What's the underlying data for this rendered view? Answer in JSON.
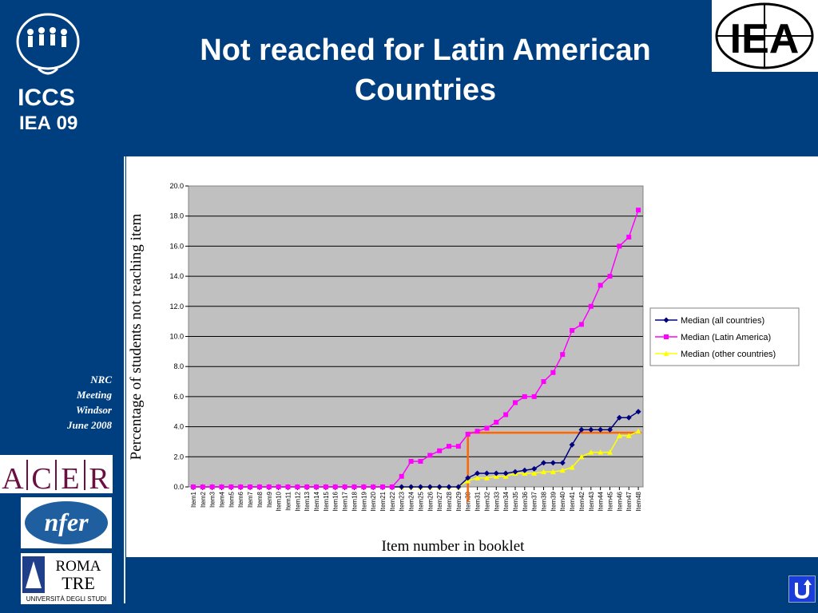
{
  "slide": {
    "title_line1": "Not reached for Latin American",
    "title_line2": "Countries",
    "side_note": [
      "NRC",
      "Meeting",
      "Windsor",
      "June 2008"
    ],
    "logos": {
      "iccs_text": "ICCS",
      "iccs_iea": "IEA",
      "iccs_year": "09",
      "iea_text": "IEA",
      "acer_letters": [
        "A",
        "C",
        "E",
        "R"
      ],
      "nfer_text": "nfer",
      "roma_line1": "ROMA",
      "roma_line2": "TRE",
      "roma_line3": "UNIVERSITÀ DEGLI STUDI"
    },
    "colors": {
      "background": "#003f7f",
      "plot_area": "#c0c0c0"
    }
  },
  "chart_data": {
    "type": "line",
    "title": "",
    "xlabel": "Item number in booklet",
    "ylabel": "Percentage of students not reaching item",
    "ylim": [
      0,
      20
    ],
    "yticks": [
      "0.0",
      "2.0",
      "4.0",
      "6.0",
      "8.0",
      "10.0",
      "12.0",
      "14.0",
      "16.0",
      "18.0",
      "20.0"
    ],
    "grid": true,
    "legend_position": "right",
    "categories": [
      "Item1",
      "Item2",
      "Item3",
      "Item4",
      "Item5",
      "Item6",
      "Item7",
      "Item8",
      "Item9",
      "Item10",
      "Item11",
      "Item12",
      "Item13",
      "Item14",
      "Item15",
      "Item16",
      "Item17",
      "Item18",
      "Item19",
      "Item20",
      "Item21",
      "Item22",
      "Item23",
      "Item24",
      "Item25",
      "Item26",
      "Item27",
      "Item28",
      "Item29",
      "Item30",
      "Item31",
      "Item32",
      "Item33",
      "Item34",
      "Item35",
      "Item36",
      "Item37",
      "Item38",
      "Item39",
      "Item40",
      "Item41",
      "Item42",
      "Item43",
      "Item44",
      "Item45",
      "Item46",
      "Item47",
      "Item48"
    ],
    "series": [
      {
        "name": "Median (all countries)",
        "color": "#000080",
        "marker": "diamond",
        "values": [
          0,
          0,
          0,
          0,
          0,
          0,
          0,
          0,
          0,
          0,
          0,
          0,
          0,
          0,
          0,
          0,
          0,
          0,
          0,
          0,
          0,
          0,
          0,
          0,
          0,
          0,
          0,
          0,
          0,
          0.6,
          0.9,
          0.9,
          0.9,
          0.9,
          1.0,
          1.1,
          1.2,
          1.6,
          1.6,
          1.6,
          2.8,
          3.8,
          3.8,
          3.8,
          3.8,
          4.6,
          4.6,
          5.0
        ]
      },
      {
        "name": "Median (Latin America)",
        "color": "#ff00ff",
        "marker": "square",
        "values": [
          0,
          0,
          0,
          0,
          0,
          0,
          0,
          0,
          0,
          0,
          0,
          0,
          0,
          0,
          0,
          0,
          0,
          0,
          0,
          0,
          0,
          0,
          0.7,
          1.7,
          1.7,
          2.1,
          2.4,
          2.7,
          2.7,
          3.5,
          3.7,
          3.9,
          4.3,
          4.8,
          5.6,
          6.0,
          6.0,
          7.0,
          7.6,
          8.8,
          10.4,
          10.8,
          12.0,
          13.4,
          14.0,
          16.0,
          16.6,
          18.4
        ]
      },
      {
        "name": "Median (other countries)",
        "color": "#ffff00",
        "marker": "triangle",
        "values": [
          0,
          0,
          0,
          0,
          0,
          0,
          0,
          0,
          0,
          0,
          0,
          0,
          0,
          0,
          0,
          0,
          0,
          0,
          0,
          0,
          0,
          0,
          0,
          0,
          0,
          0,
          0,
          0,
          0,
          0.4,
          0.6,
          0.6,
          0.7,
          0.7,
          0.9,
          0.9,
          0.9,
          1.0,
          1.0,
          1.1,
          1.3,
          2.0,
          2.3,
          2.3,
          2.3,
          3.4,
          3.4,
          3.7
        ]
      }
    ],
    "annotations": [
      {
        "type": "step-line",
        "color": "#ff6600",
        "x_category": "Item30",
        "y_from": -1.0,
        "y_to": 3.6,
        "x_end_category": "Item48"
      }
    ]
  }
}
